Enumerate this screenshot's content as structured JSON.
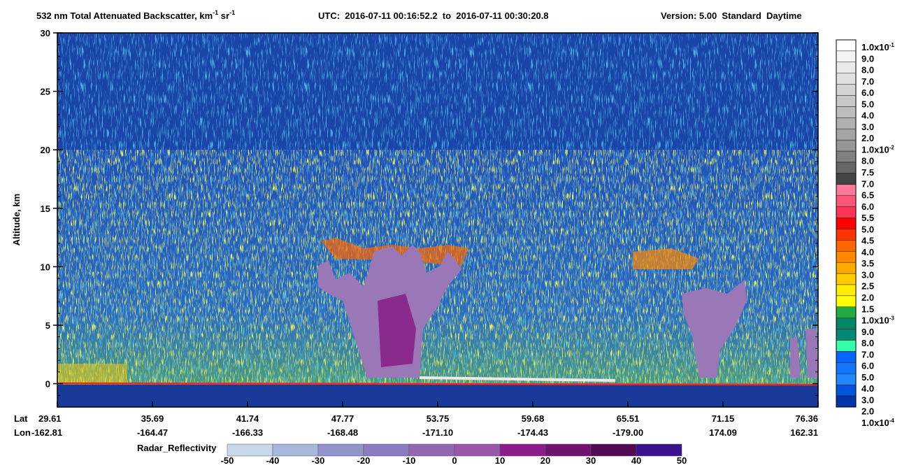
{
  "chart_data": {
    "type": "curtain",
    "title": {
      "main": "532 nm Total Attenuated Backscatter, km",
      "sup1": "-1",
      "unit2": " sr",
      "sup2": "-1",
      "utc": "UTC:  2016-07-11 00:16:52.2  to  2016-07-11 00:30:20.8",
      "version": "Version: 5.00  Standard  Daytime"
    },
    "y_label": "Altitude, km",
    "ylim": [
      -2,
      30
    ],
    "yticks": [
      0,
      5,
      10,
      15,
      20,
      25,
      30
    ],
    "x_row_labels": [
      "Lat",
      "Lon"
    ],
    "lat": [
      "29.61",
      "35.69",
      "41.74",
      "47.77",
      "53.75",
      "59.68",
      "65.51",
      "71.15",
      "76.36"
    ],
    "lon": [
      "-162.81",
      "-164.47",
      "-166.33",
      "-168.48",
      "-171.10",
      "-174.43",
      "-179.00",
      "174.09",
      "162.31"
    ],
    "colorbar": {
      "labels": [
        {
          "text": "1.0x10",
          "exp": "-1"
        },
        "9.0",
        "8.0",
        "7.0",
        "6.0",
        "5.0",
        "4.0",
        "3.0",
        "2.0",
        {
          "text": "1.0x10",
          "exp": "-2"
        },
        "8.0",
        "7.5",
        "7.0",
        "6.5",
        "6.0",
        "5.5",
        "5.0",
        "4.5",
        "4.0",
        "3.5",
        "3.0",
        "2.5",
        "2.0",
        "1.5",
        {
          "text": "1.0x10",
          "exp": "-3"
        },
        "9.0",
        "8.0",
        "7.0",
        "6.0",
        "5.0",
        "4.0",
        "3.0",
        "2.0",
        {
          "text": "1.0x10",
          "exp": "-4"
        }
      ],
      "colors": [
        "#ffffff",
        "#f4f4f4",
        "#eaeaea",
        "#e0e0e0",
        "#d4d4d4",
        "#c8c8c8",
        "#bcbcbc",
        "#b0b0b0",
        "#a4a4a4",
        "#969696",
        "#808080",
        "#666666",
        "#444444",
        "#ff7799",
        "#ff5577",
        "#ff3355",
        "#ff0000",
        "#ff3300",
        "#ff6600",
        "#ff8800",
        "#ffaa00",
        "#ffcc00",
        "#ffee00",
        "#ffff00",
        "#22aa44",
        "#008866",
        "#008877",
        "#33ffaa",
        "#0066ff",
        "#1177ff",
        "#2288ff",
        "#0055dd",
        "#0033aa"
      ]
    },
    "radar_bar": {
      "label": "Radar_Reflectivity",
      "ticks": [
        -50,
        -40,
        -30,
        -20,
        -10,
        0,
        10,
        20,
        30,
        40,
        50
      ],
      "colors": [
        "#c8d8ea",
        "#a8b8dc",
        "#9494cc",
        "#8a7cc2",
        "#9466b4",
        "#9a58ac",
        "#8a1c8c",
        "#701270",
        "#520a52",
        "#3a1290"
      ]
    }
  }
}
